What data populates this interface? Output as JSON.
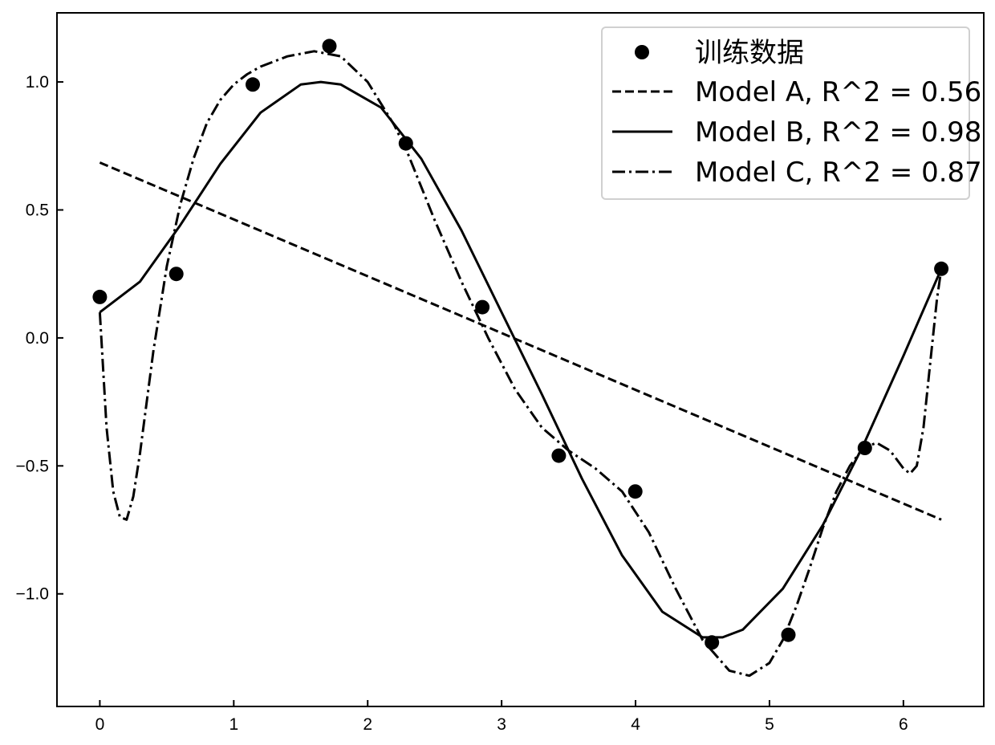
{
  "chart_data": {
    "type": "line",
    "title": "",
    "xlabel": "",
    "ylabel": "",
    "xlim": [
      -0.32,
      6.6
    ],
    "ylim": [
      -1.44,
      1.27
    ],
    "x_ticks": [
      0,
      1,
      2,
      3,
      4,
      5,
      6
    ],
    "y_ticks": [
      -1.0,
      -0.5,
      0.0,
      0.5,
      1.0
    ],
    "x_tick_labels": [
      "0",
      "1",
      "2",
      "3",
      "4",
      "5",
      "6"
    ],
    "y_tick_labels": [
      "−1.0",
      "−0.5",
      "0.0",
      "0.5",
      "1.0"
    ],
    "grid": false,
    "legend_position": "top-right",
    "colors": {
      "line": "#000000",
      "marker": "#000000",
      "frame": "#000000",
      "background": "#ffffff"
    },
    "scatter": {
      "name": "训练数据",
      "x": [
        0.0,
        0.571,
        1.142,
        1.714,
        2.285,
        2.856,
        3.427,
        3.998,
        4.57,
        5.141,
        5.712,
        6.283
      ],
      "y": [
        0.16,
        0.25,
        0.99,
        1.14,
        0.76,
        0.12,
        -0.46,
        -0.6,
        -1.19,
        -1.16,
        -0.43,
        0.27
      ]
    },
    "series": [
      {
        "name": "Model A, R^2 = 0.56",
        "style": "dashed",
        "x": [
          0.0,
          6.283
        ],
        "y": [
          0.685,
          -0.71
        ]
      },
      {
        "name": "Model B, R^2 = 0.98",
        "style": "solid",
        "x": [
          0.0,
          0.3,
          0.6,
          0.9,
          1.2,
          1.5,
          1.65,
          1.8,
          2.1,
          2.4,
          2.7,
          3.0,
          3.3,
          3.6,
          3.9,
          4.2,
          4.5,
          4.65,
          4.8,
          5.1,
          5.4,
          5.7,
          6.0,
          6.283
        ],
        "y": [
          0.1,
          0.22,
          0.44,
          0.68,
          0.88,
          0.99,
          1.0,
          0.99,
          0.9,
          0.7,
          0.42,
          0.1,
          -0.22,
          -0.55,
          -0.85,
          -1.07,
          -1.17,
          -1.17,
          -1.14,
          -0.98,
          -0.73,
          -0.42,
          -0.07,
          0.27
        ]
      },
      {
        "name": "Model C, R^2 = 0.87",
        "style": "dashdot",
        "x": [
          0.0,
          0.05,
          0.1,
          0.15,
          0.2,
          0.25,
          0.3,
          0.4,
          0.5,
          0.6,
          0.7,
          0.8,
          0.9,
          1.0,
          1.1,
          1.2,
          1.4,
          1.6,
          1.8,
          2.0,
          2.2,
          2.3,
          2.5,
          2.7,
          2.9,
          3.1,
          3.3,
          3.5,
          3.7,
          3.9,
          4.1,
          4.3,
          4.5,
          4.7,
          4.85,
          5.0,
          5.1,
          5.2,
          5.3,
          5.4,
          5.5,
          5.6,
          5.7,
          5.8,
          5.9,
          6.0,
          6.05,
          6.1,
          6.15,
          6.2,
          6.25,
          6.283
        ],
        "y": [
          0.1,
          -0.35,
          -0.6,
          -0.7,
          -0.71,
          -0.62,
          -0.45,
          -0.05,
          0.28,
          0.52,
          0.7,
          0.84,
          0.93,
          0.99,
          1.03,
          1.06,
          1.1,
          1.12,
          1.1,
          1.0,
          0.83,
          0.72,
          0.46,
          0.22,
          0.0,
          -0.2,
          -0.35,
          -0.44,
          -0.51,
          -0.6,
          -0.76,
          -0.98,
          -1.18,
          -1.3,
          -1.32,
          -1.27,
          -1.18,
          -1.05,
          -0.9,
          -0.74,
          -0.6,
          -0.5,
          -0.43,
          -0.41,
          -0.44,
          -0.51,
          -0.53,
          -0.5,
          -0.35,
          -0.1,
          0.15,
          0.27
        ]
      }
    ],
    "legend": [
      "训练数据",
      "Model A, R^2 = 0.56",
      "Model B, R^2 = 0.98",
      "Model C, R^2 = 0.87"
    ]
  }
}
